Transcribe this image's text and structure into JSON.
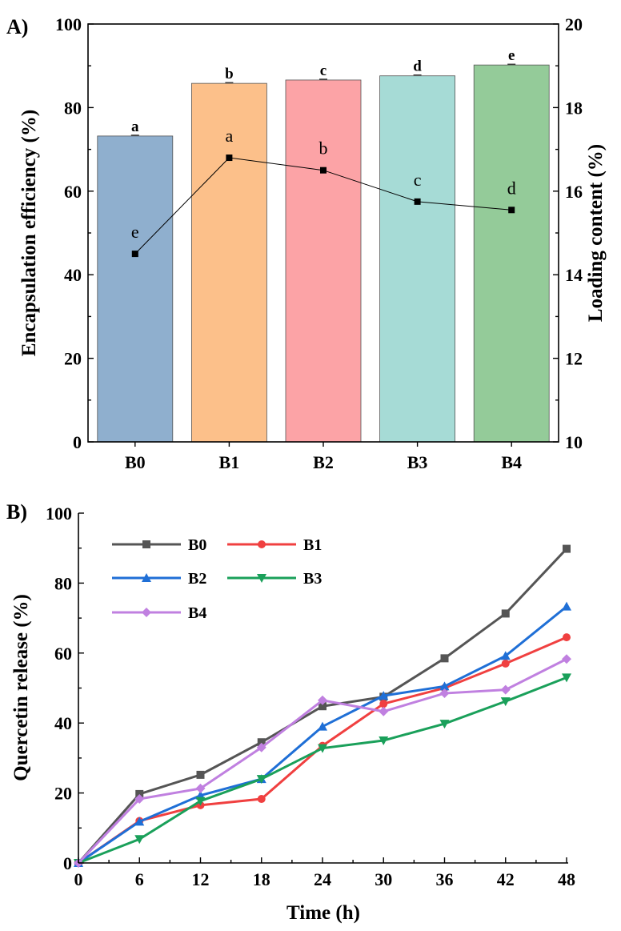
{
  "chart_data": [
    {
      "panel_label": "A)",
      "type": "bar",
      "categories": [
        "B0",
        "B1",
        "B2",
        "B3",
        "B4"
      ],
      "bar_series": {
        "name": "Encapsulation efficiency (%)",
        "values": [
          73.2,
          85.8,
          86.6,
          87.6,
          90.2
        ],
        "letters": [
          "a",
          "b",
          "c",
          "d",
          "e"
        ],
        "colors": [
          "#8fafce",
          "#fcc08a",
          "#fca3a6",
          "#a6dbd6",
          "#94cb99"
        ]
      },
      "line_series": {
        "name": "Loading content (%)",
        "values": [
          14.5,
          16.8,
          16.5,
          15.75,
          15.55
        ],
        "letters": [
          "e",
          "a",
          "b",
          "c",
          "d"
        ]
      },
      "ylabel": "Encapsulation efficiency (%)",
      "ylim": [
        0,
        100
      ],
      "yticks": [
        "0",
        "20",
        "40",
        "60",
        "80",
        "100"
      ],
      "y2label": "Loading content (%)",
      "y2lim": [
        10,
        20
      ],
      "y2ticks": [
        "10",
        "12",
        "14",
        "16",
        "18",
        "20"
      ]
    },
    {
      "panel_label": "B)",
      "type": "line",
      "x": [
        0,
        6,
        12,
        18,
        24,
        30,
        36,
        42,
        48
      ],
      "xticks": [
        "0",
        "6",
        "12",
        "18",
        "24",
        "30",
        "36",
        "42",
        "48"
      ],
      "xlabel": "Time (h)",
      "ylabel": "Quercetin release (%)",
      "xlim": [
        0,
        48
      ],
      "ylim": [
        0,
        100
      ],
      "yticks": [
        "0",
        "20",
        "40",
        "60",
        "80",
        "100"
      ],
      "legend_position": "top-left",
      "series": [
        {
          "name": "B0",
          "color": "#555555",
          "marker": "square",
          "values": [
            0,
            19.7,
            25.2,
            34.5,
            44.8,
            47.5,
            58.5,
            71.3,
            89.8
          ]
        },
        {
          "name": "B1",
          "color": "#f04040",
          "marker": "circle",
          "values": [
            0,
            12.0,
            16.5,
            18.3,
            33.5,
            45.5,
            50.0,
            57.0,
            64.5
          ]
        },
        {
          "name": "B2",
          "color": "#1f6fd6",
          "marker": "triangle-up",
          "values": [
            0,
            11.8,
            19.3,
            24.0,
            39.0,
            47.8,
            50.5,
            59.2,
            73.3
          ]
        },
        {
          "name": "B3",
          "color": "#1aa05a",
          "marker": "triangle-down",
          "values": [
            0,
            6.8,
            17.7,
            24.0,
            32.8,
            35.0,
            39.8,
            46.2,
            53.0
          ]
        },
        {
          "name": "B4",
          "color": "#c080e0",
          "marker": "diamond",
          "values": [
            0,
            18.3,
            21.3,
            33.0,
            46.5,
            43.3,
            48.5,
            49.5,
            58.3
          ]
        }
      ]
    }
  ]
}
